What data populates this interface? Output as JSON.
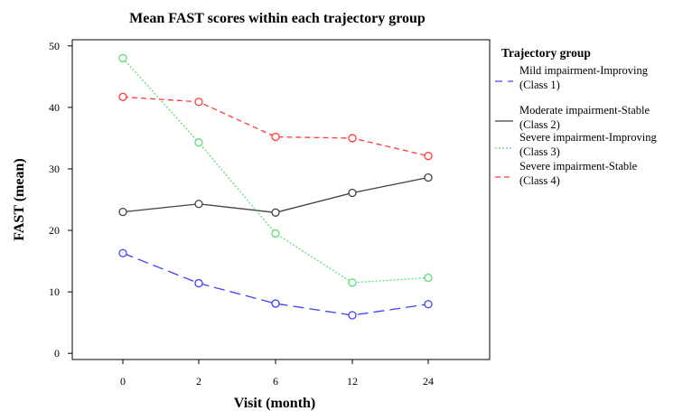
{
  "chart_data": {
    "type": "line",
    "title": "Mean FAST scores within each trajectory group",
    "xlabel": "Visit (month)",
    "ylabel": "FAST (mean)",
    "categories": [
      "0",
      "2",
      "6",
      "12",
      "24"
    ],
    "ylim": [
      -1,
      51
    ],
    "yticks": [
      0,
      10,
      20,
      30,
      40,
      50
    ],
    "grid": false,
    "legend": {
      "title": "Trajectory group",
      "placement": "right"
    },
    "series": [
      {
        "name_line1": "Mild impairment-Improving",
        "name_line2": "(Class 1)",
        "color": "#4040ff",
        "dash": "long-dash",
        "values": [
          16.3,
          11.4,
          8.1,
          6.2,
          8.0
        ]
      },
      {
        "name_line1": "Moderate impairment-Stable",
        "name_line2": "(Class 2)",
        "color": "#404040",
        "dash": "solid",
        "values": [
          23.0,
          24.3,
          22.9,
          26.1,
          28.6
        ]
      },
      {
        "name_line1": "Severe impairment-Improving",
        "name_line2": "(Class 3)",
        "color": "#5fdc7a",
        "dash": "dotted",
        "values": [
          48.0,
          34.3,
          19.5,
          11.5,
          12.3
        ]
      },
      {
        "name_line1": "Severe impairment-Stable",
        "name_line2": "(Class 4)",
        "color": "#ff3b3b",
        "dash": "dash",
        "values": [
          41.7,
          40.9,
          35.2,
          35.0,
          32.1
        ]
      }
    ]
  }
}
